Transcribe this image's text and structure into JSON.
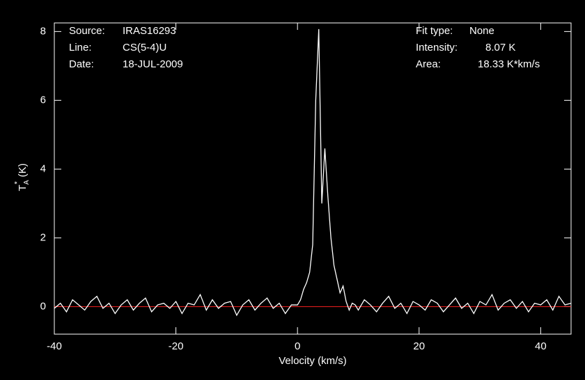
{
  "chart_data": {
    "type": "line",
    "x_label": "Velocity (km/s)",
    "y_label": {
      "main": "T",
      "sub": "A",
      "sup": "*",
      "unit": "(K)"
    },
    "info_left": [
      {
        "label": "Source:",
        "value": "IRAS16293"
      },
      {
        "label": "Line:",
        "value": "CS(5-4)U"
      },
      {
        "label": "Date:",
        "value": "18-JUL-2009"
      }
    ],
    "info_right": [
      {
        "label": "Fit type:",
        "value": "None"
      },
      {
        "label": "Intensity:",
        "value": "8.07 K"
      },
      {
        "label": "Area:",
        "value": "18.33 K*km/s"
      }
    ],
    "xlim": [
      -40,
      45
    ],
    "ylim": [
      -0.8,
      8.25
    ],
    "xticks": [
      -40,
      -20,
      0,
      20,
      40
    ],
    "yticks": [
      0,
      2,
      4,
      6,
      8
    ],
    "baseline": 0,
    "baseline_color": "#ff2020",
    "series": [
      {
        "color": "#ffffff",
        "x": [
          -40,
          -39,
          -38,
          -37,
          -36,
          -35,
          -34,
          -33,
          -32,
          -31,
          -30,
          -29,
          -28,
          -27,
          -26,
          -25,
          -24,
          -23,
          -22,
          -21,
          -20,
          -19,
          -18,
          -17,
          -16,
          -15,
          -14,
          -13,
          -12,
          -11,
          -10,
          -9,
          -8,
          -7,
          -6,
          -5,
          -4,
          -3,
          -2,
          -1,
          0,
          0.5,
          1,
          1.5,
          2,
          2.5,
          3,
          3.5,
          4,
          4.5,
          5,
          5.5,
          6,
          6.5,
          7,
          7.5,
          8,
          8.5,
          9,
          9.5,
          10,
          11,
          12,
          13,
          14,
          15,
          16,
          17,
          18,
          19,
          20,
          21,
          22,
          23,
          24,
          25,
          26,
          27,
          28,
          29,
          30,
          31,
          32,
          33,
          34,
          35,
          36,
          37,
          38,
          39,
          40,
          41,
          42,
          43,
          44,
          45
        ],
        "values": [
          -0.05,
          0.1,
          -0.15,
          0.2,
          0.05,
          -0.1,
          0.15,
          0.3,
          -0.05,
          0.1,
          -0.2,
          0.05,
          0.2,
          -0.1,
          0.1,
          0.25,
          -0.15,
          0.05,
          0.1,
          -0.05,
          0.15,
          -0.2,
          0.1,
          0.05,
          0.35,
          -0.1,
          0.2,
          -0.05,
          0.1,
          0.15,
          -0.25,
          0.05,
          0.2,
          -0.1,
          0.1,
          0.25,
          -0.05,
          0.1,
          -0.2,
          0.05,
          0.05,
          0.2,
          0.5,
          0.7,
          1.0,
          1.8,
          6.0,
          8.07,
          3.0,
          4.6,
          3.2,
          2.0,
          1.2,
          0.8,
          0.4,
          0.6,
          0.15,
          -0.1,
          0.1,
          0.05,
          -0.1,
          0.2,
          0.05,
          -0.15,
          0.1,
          0.3,
          -0.05,
          0.1,
          -0.2,
          0.15,
          0.05,
          -0.1,
          0.2,
          0.1,
          -0.15,
          0.05,
          0.25,
          -0.05,
          0.1,
          -0.2,
          0.15,
          0.05,
          0.35,
          -0.1,
          0.1,
          0.2,
          -0.05,
          0.15,
          -0.15,
          0.1,
          0.05,
          0.2,
          -0.1,
          0.3,
          0.05,
          0.1
        ]
      }
    ]
  }
}
